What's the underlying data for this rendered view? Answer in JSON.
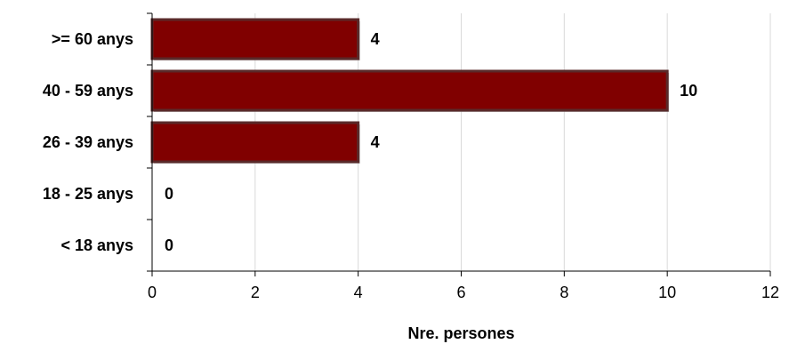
{
  "chart_data": {
    "type": "bar",
    "orientation": "horizontal",
    "categories": [
      ">= 60 anys",
      "40 - 59 anys",
      "26 - 39 anys",
      "18 - 25 anys",
      "< 18 anys"
    ],
    "values": [
      4,
      10,
      4,
      0,
      0
    ],
    "xlabel": "Nre. persones",
    "ylabel": "",
    "xlim": [
      0,
      12
    ],
    "xticks": [
      0,
      2,
      4,
      6,
      8,
      10,
      12
    ],
    "grid": "vertical",
    "data_labels": true,
    "bar_color": "#800000",
    "bar_edge_color": "#5a2a2a"
  }
}
